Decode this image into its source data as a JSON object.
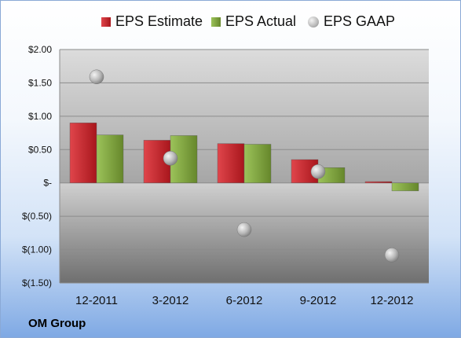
{
  "company": "OM Group",
  "chart_data": {
    "type": "bar",
    "categories": [
      "12-2011",
      "3-2012",
      "6-2012",
      "9-2012",
      "12-2012"
    ],
    "series": [
      {
        "name": "EPS Estimate",
        "kind": "bar",
        "color": "#c8242b",
        "values": [
          0.9,
          0.64,
          0.59,
          0.35,
          0.02
        ]
      },
      {
        "name": "EPS Actual",
        "kind": "bar",
        "color": "#7ea33d",
        "values": [
          0.72,
          0.71,
          0.58,
          0.23,
          -0.12
        ]
      },
      {
        "name": "EPS GAAP",
        "kind": "scatter",
        "color": "#a8a8a8",
        "values": [
          1.59,
          0.37,
          -0.7,
          0.17,
          -1.08
        ]
      }
    ],
    "ylim": [
      -1.5,
      2.0
    ],
    "yticks": [
      {
        "value": 2.0,
        "label": "$2.00"
      },
      {
        "value": 1.5,
        "label": "$1.50"
      },
      {
        "value": 1.0,
        "label": "$1.00"
      },
      {
        "value": 0.5,
        "label": "$0.50"
      },
      {
        "value": 0.0,
        "label": "$-"
      },
      {
        "value": -0.5,
        "label": "$(0.50)"
      },
      {
        "value": -1.0,
        "label": "$(1.00)"
      },
      {
        "value": -1.5,
        "label": "$(1.50)"
      }
    ],
    "grid": true,
    "legend": "top"
  }
}
